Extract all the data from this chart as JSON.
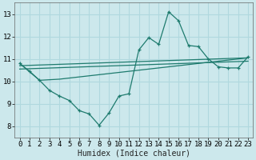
{
  "xlabel": "Humidex (Indice chaleur)",
  "xlim": [
    -0.5,
    23.5
  ],
  "ylim": [
    7.5,
    13.5
  ],
  "yticks": [
    8,
    9,
    10,
    11,
    12,
    13
  ],
  "xticks": [
    0,
    1,
    2,
    3,
    4,
    5,
    6,
    7,
    8,
    9,
    10,
    11,
    12,
    13,
    14,
    15,
    16,
    17,
    18,
    19,
    20,
    21,
    22,
    23
  ],
  "bg_color": "#cce8ec",
  "grid_color": "#b0d8de",
  "line_color": "#1e7b6e",
  "main_line_x": [
    0,
    1,
    2,
    3,
    4,
    5,
    6,
    7,
    8,
    9,
    10,
    11,
    12,
    13,
    14,
    15,
    16,
    17,
    18,
    19,
    20,
    21,
    22,
    23
  ],
  "main_line_y": [
    10.8,
    10.45,
    10.05,
    9.6,
    9.35,
    9.15,
    8.7,
    8.55,
    8.05,
    8.6,
    9.35,
    9.45,
    11.4,
    11.95,
    11.65,
    13.1,
    12.7,
    11.6,
    11.55,
    11.0,
    10.65,
    10.6,
    10.6,
    11.1
  ],
  "line2_x": [
    0,
    2,
    4,
    23
  ],
  "line2_y": [
    10.8,
    10.05,
    10.1,
    11.05
  ],
  "line3_x": [
    0,
    23
  ],
  "line3_y": [
    10.55,
    10.9
  ],
  "line4_x": [
    0,
    23
  ],
  "line4_y": [
    10.7,
    11.05
  ],
  "font_size_label": 7,
  "tick_font_size": 6.5
}
